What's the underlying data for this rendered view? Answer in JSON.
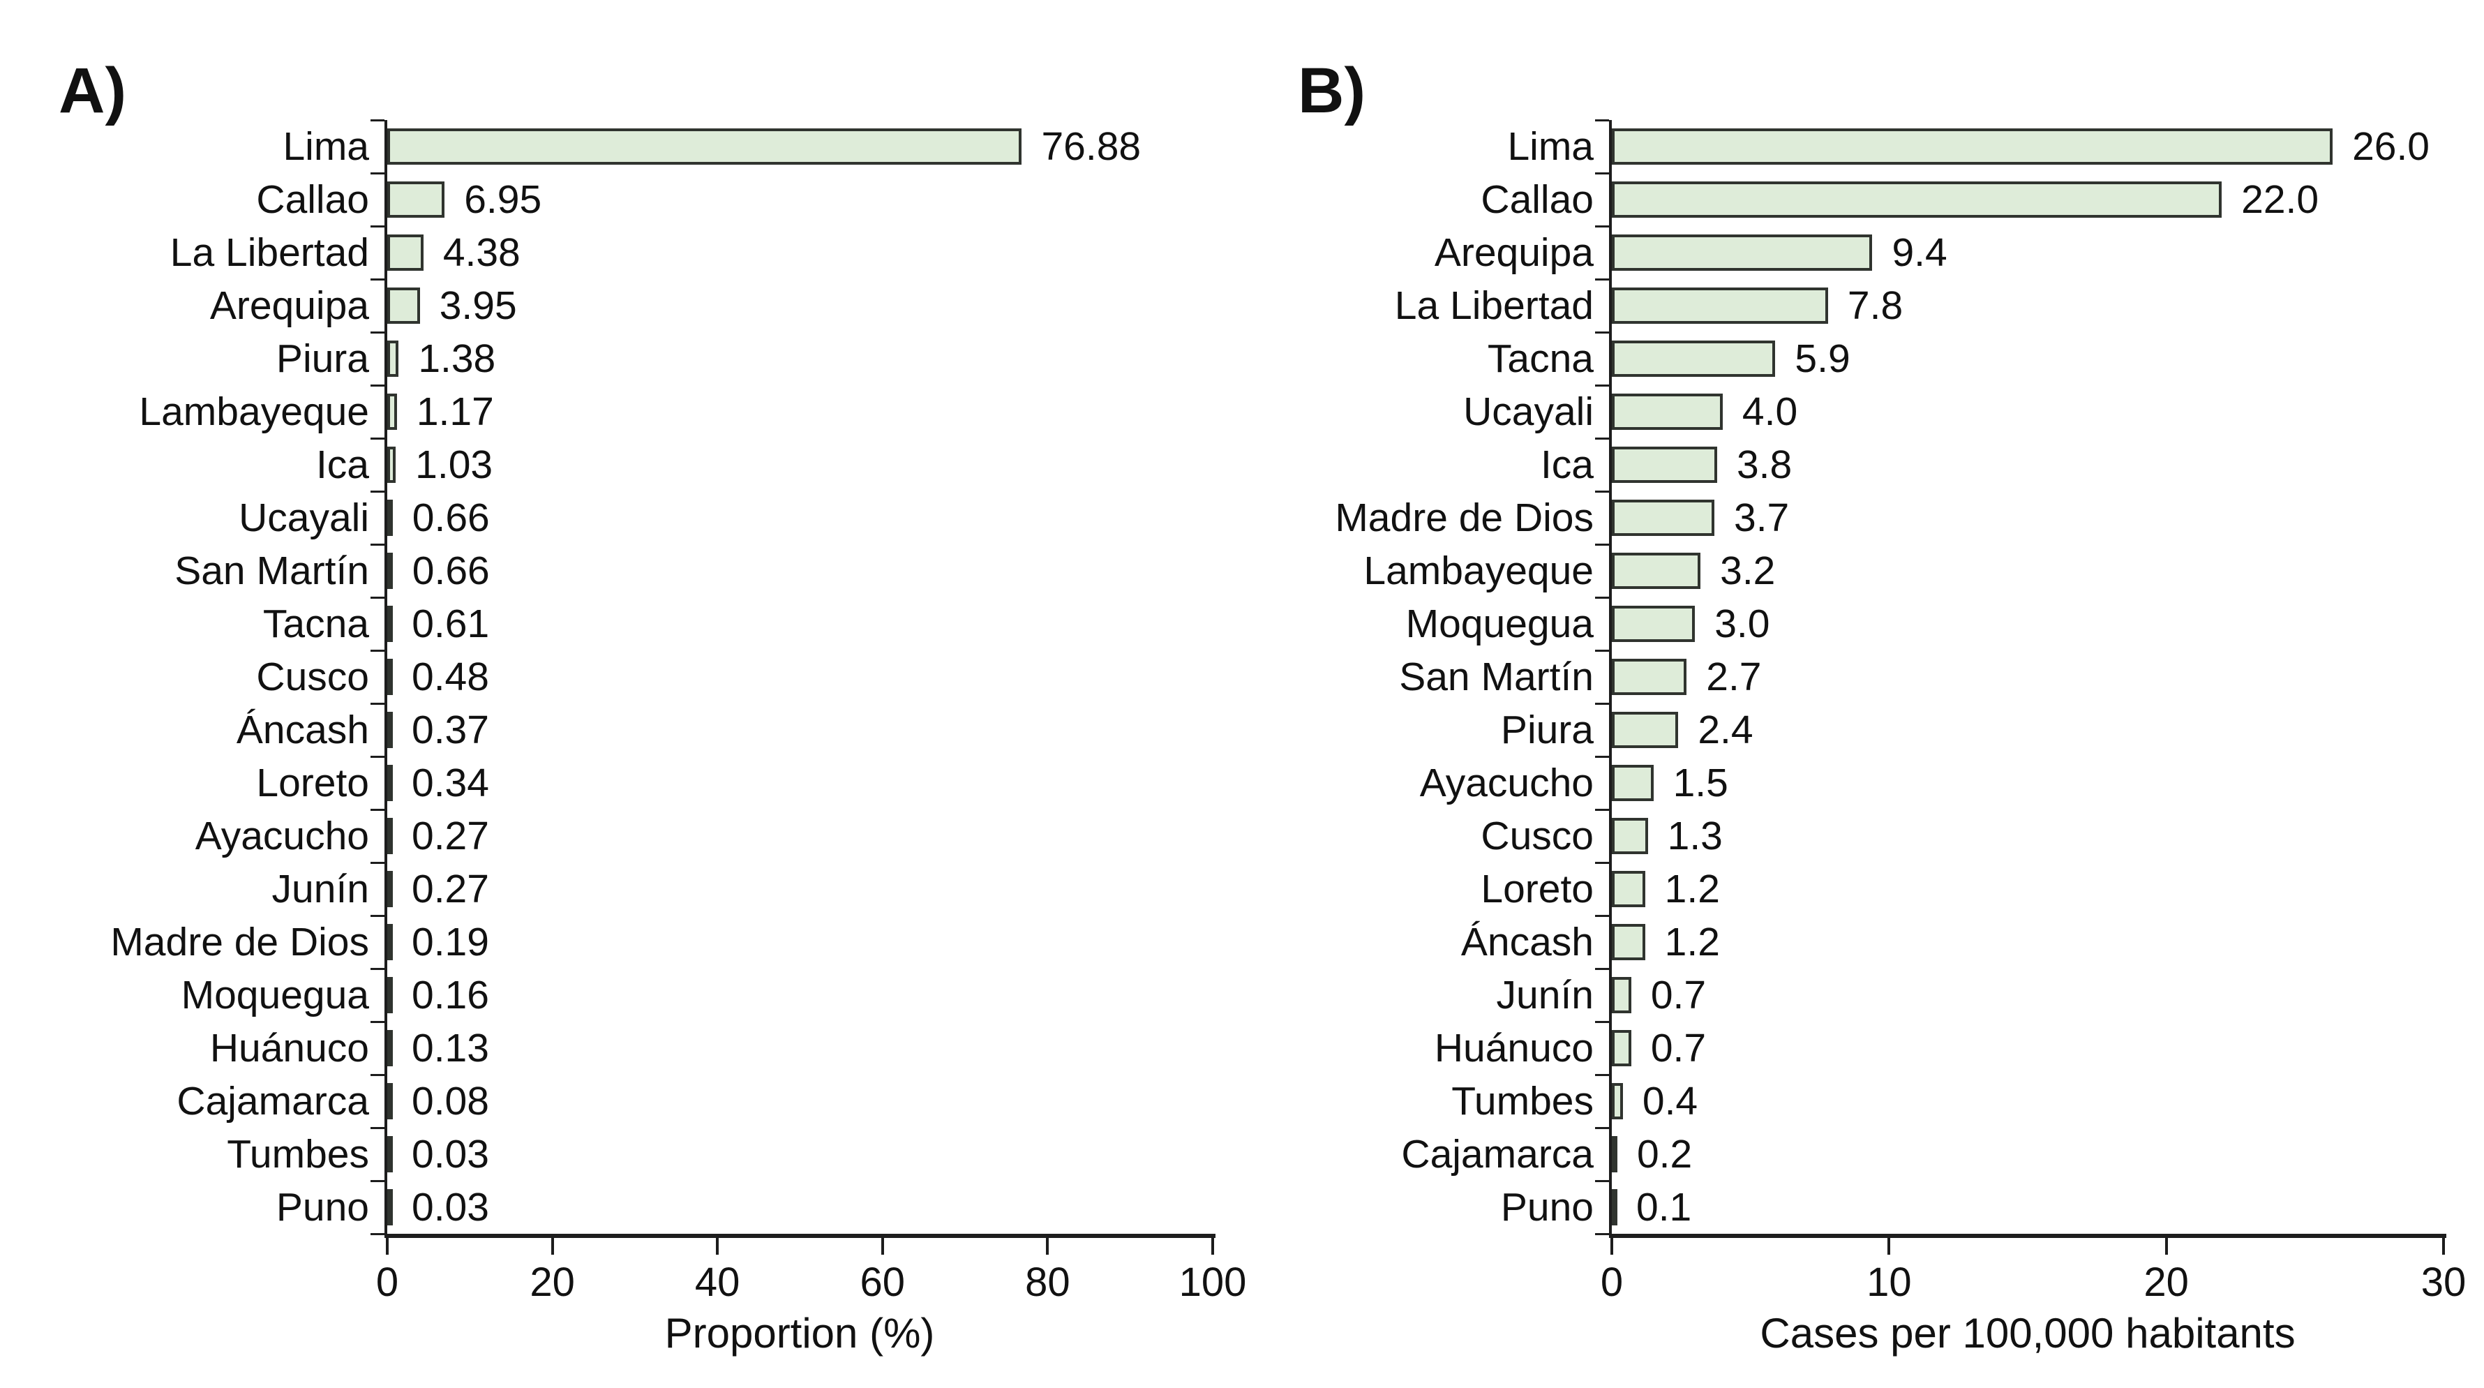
{
  "figure": {
    "background": "#ffffff",
    "text_color": "#111111",
    "axis_color": "#1d1d1d"
  },
  "chart_data": [
    {
      "type": "bar",
      "orientation": "horizontal",
      "panel_label": "A)",
      "title": "",
      "xlabel": "Proportion (%)",
      "ylabel": "",
      "xlim": [
        0,
        100
      ],
      "xticks": [
        0,
        20,
        40,
        60,
        80,
        100
      ],
      "grid": false,
      "legend": "none",
      "bar_fill": "#deecd9",
      "bar_border": "#30342f",
      "categories": [
        "Lima",
        "Callao",
        "La Libertad",
        "Arequipa",
        "Piura",
        "Lambayeque",
        "Ica",
        "Ucayali",
        "San Martín",
        "Tacna",
        "Cusco",
        "Áncash",
        "Loreto",
        "Ayacucho",
        "Junín",
        "Madre de Dios",
        "Moquegua",
        "Huánuco",
        "Cajamarca",
        "Tumbes",
        "Puno"
      ],
      "values": [
        76.88,
        6.95,
        4.38,
        3.95,
        1.38,
        1.17,
        1.03,
        0.66,
        0.66,
        0.61,
        0.48,
        0.37,
        0.34,
        0.27,
        0.27,
        0.19,
        0.16,
        0.13,
        0.08,
        0.03,
        0.03
      ],
      "value_labels": [
        "76.88",
        "6.95",
        "4.38",
        "3.95",
        "1.38",
        "1.17",
        "1.03",
        "0.66",
        "0.66",
        "0.61",
        "0.48",
        "0.37",
        "0.34",
        "0.27",
        "0.27",
        "0.19",
        "0.16",
        "0.13",
        "0.08",
        "0.03",
        "0.03"
      ]
    },
    {
      "type": "bar",
      "orientation": "horizontal",
      "panel_label": "B)",
      "title": "",
      "xlabel": "Cases per 100,000 habitants",
      "ylabel": "",
      "xlim": [
        0,
        30
      ],
      "xticks": [
        0,
        10,
        20,
        30
      ],
      "grid": false,
      "legend": "none",
      "bar_fill": "#deecd9",
      "bar_border": "#30342f",
      "categories": [
        "Lima",
        "Callao",
        "Arequipa",
        "La Libertad",
        "Tacna",
        "Ucayali",
        "Ica",
        "Madre de Dios",
        "Lambayeque",
        "Moquegua",
        "San Martín",
        "Piura",
        "Ayacucho",
        "Cusco",
        "Loreto",
        "Áncash",
        "Junín",
        "Huánuco",
        "Tumbes",
        "Cajamarca",
        "Puno"
      ],
      "values": [
        26.0,
        22.0,
        9.4,
        7.8,
        5.9,
        4.0,
        3.8,
        3.7,
        3.2,
        3.0,
        2.7,
        2.4,
        1.5,
        1.3,
        1.2,
        1.2,
        0.7,
        0.7,
        0.4,
        0.2,
        0.1
      ],
      "value_labels": [
        "26.0",
        "22.0",
        "9.4",
        "7.8",
        "5.9",
        "4.0",
        "3.8",
        "3.7",
        "3.2",
        "3.0",
        "2.7",
        "2.4",
        "1.5",
        "1.3",
        "1.2",
        "1.2",
        "0.7",
        "0.7",
        "0.4",
        "0.2",
        "0.1"
      ]
    }
  ]
}
